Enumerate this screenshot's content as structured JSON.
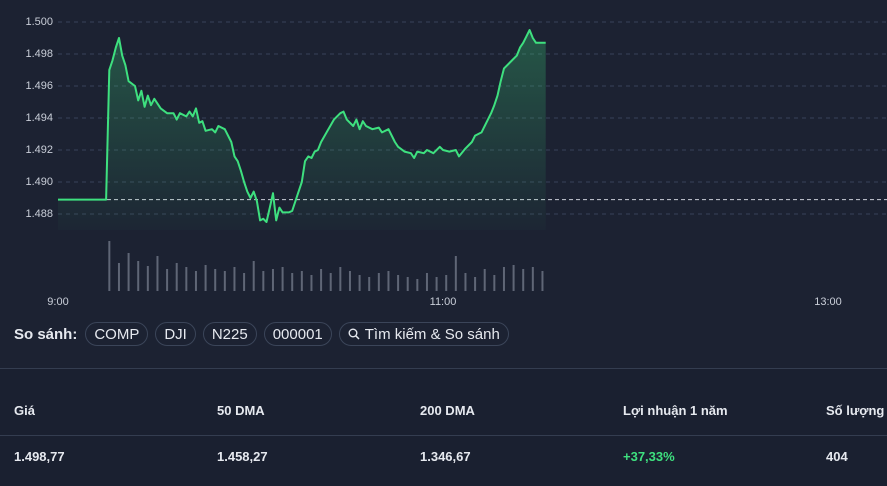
{
  "chart_data": {
    "type": "line",
    "x": [
      "9:00",
      "9:15",
      "9:16",
      "9:17",
      "9:18",
      "9:19",
      "9:20",
      "9:21",
      "9:22",
      "9:24",
      "9:25",
      "9:26",
      "9:27",
      "9:28",
      "9:29",
      "9:30",
      "9:32",
      "9:34",
      "9:36",
      "9:37",
      "9:38",
      "9:40",
      "9:41",
      "9:42",
      "9:43",
      "9:44",
      "9:45",
      "9:46",
      "9:48",
      "9:49",
      "9:50",
      "9:52",
      "9:54",
      "9:55",
      "9:56",
      "9:57",
      "9:58",
      "9:59",
      "10:00",
      "10:01",
      "10:02",
      "10:03",
      "10:04",
      "10:05",
      "10:06",
      "10:07",
      "10:08",
      "10:09",
      "10:10",
      "10:12",
      "10:13",
      "10:14",
      "10:15",
      "10:16",
      "10:17",
      "10:18",
      "10:19",
      "10:20",
      "10:21",
      "10:22",
      "10:24",
      "10:26",
      "10:28",
      "10:29",
      "10:30",
      "10:32",
      "10:33",
      "10:34",
      "10:35",
      "10:36",
      "10:38",
      "10:40",
      "10:41",
      "10:43",
      "10:45",
      "10:46",
      "10:48",
      "10:50",
      "10:51",
      "10:52",
      "10:54",
      "10:55",
      "10:57",
      "10:59",
      "11:00",
      "11:02",
      "11:04",
      "11:05",
      "11:07",
      "11:09",
      "11:10",
      "11:12",
      "11:13",
      "11:14",
      "11:15",
      "11:16",
      "11:17",
      "11:18",
      "11:19",
      "11:21",
      "11:23",
      "11:24",
      "11:25",
      "11:26",
      "11:27",
      "11:28",
      "11:29",
      "11:30",
      "11:32"
    ],
    "values": [
      1488.9,
      1488.9,
      1497.0,
      1497.6,
      1498.4,
      1499.0,
      1497.9,
      1497.3,
      1496.3,
      1496.0,
      1495.1,
      1495.7,
      1494.7,
      1495.4,
      1494.8,
      1495.2,
      1494.6,
      1494.3,
      1494.3,
      1493.9,
      1494.3,
      1494.1,
      1494.4,
      1494.1,
      1494.6,
      1493.7,
      1493.8,
      1493.2,
      1493.3,
      1493.1,
      1493.5,
      1493.3,
      1492.5,
      1491.6,
      1491.3,
      1490.7,
      1490.0,
      1489.4,
      1489.0,
      1489.4,
      1488.8,
      1487.6,
      1487.7,
      1487.5,
      1488.4,
      1489.3,
      1487.6,
      1488.4,
      1488.1,
      1488.1,
      1488.2,
      1488.8,
      1489.4,
      1490.0,
      1491.3,
      1491.6,
      1491.5,
      1491.9,
      1492.0,
      1492.5,
      1493.2,
      1493.9,
      1494.3,
      1494.4,
      1493.9,
      1493.5,
      1493.9,
      1493.3,
      1493.8,
      1493.5,
      1493.3,
      1493.4,
      1493.1,
      1493.3,
      1492.5,
      1492.2,
      1491.9,
      1491.8,
      1491.5,
      1491.9,
      1491.8,
      1492.0,
      1491.8,
      1492.2,
      1492.0,
      1491.9,
      1492.0,
      1491.6,
      1492.1,
      1492.5,
      1492.9,
      1493.1,
      1493.5,
      1493.9,
      1494.3,
      1494.8,
      1495.4,
      1496.3,
      1497.1,
      1497.5,
      1497.9,
      1498.4,
      1498.7,
      1499.1,
      1499.5,
      1499.0,
      1498.7,
      1498.7,
      1498.7
    ],
    "color": "#3ee07f",
    "reference_line": 1488.9,
    "ylim": [
      1487,
      1500.5
    ],
    "yticks": [
      {
        "value": 1488,
        "label": "1.488"
      },
      {
        "value": 1490,
        "label": "1.490"
      },
      {
        "value": 1492,
        "label": "1.492"
      },
      {
        "value": 1494,
        "label": "1.494"
      },
      {
        "value": 1496,
        "label": "1.496"
      },
      {
        "value": 1498,
        "label": "1.498"
      },
      {
        "value": 1500,
        "label": "1.500"
      }
    ],
    "xlim": [
      "9:00",
      "13:00"
    ],
    "xticks": [
      "9:00",
      "11:00",
      "13:00"
    ],
    "grid": true,
    "volume": {
      "x": [
        "9:16",
        "9:19",
        "9:22",
        "9:25",
        "9:28",
        "9:31",
        "9:34",
        "9:37",
        "9:40",
        "9:43",
        "9:46",
        "9:49",
        "9:52",
        "9:55",
        "9:58",
        "10:01",
        "10:04",
        "10:07",
        "10:10",
        "10:13",
        "10:16",
        "10:19",
        "10:22",
        "10:25",
        "10:28",
        "10:31",
        "10:34",
        "10:37",
        "10:40",
        "10:43",
        "10:46",
        "10:49",
        "10:52",
        "10:55",
        "10:58",
        "11:01",
        "11:04",
        "11:07",
        "11:10",
        "11:13",
        "11:16",
        "11:19",
        "11:22",
        "11:25",
        "11:28",
        "11:31"
      ],
      "values": [
        50,
        28,
        38,
        30,
        25,
        35,
        22,
        28,
        24,
        20,
        26,
        22,
        20,
        24,
        18,
        30,
        20,
        22,
        24,
        18,
        20,
        16,
        22,
        18,
        24,
        20,
        16,
        14,
        18,
        20,
        16,
        14,
        12,
        18,
        14,
        16,
        35,
        18,
        14,
        22,
        16,
        24,
        26,
        22,
        24,
        20
      ],
      "color": "#5f6676",
      "lim": [
        0,
        50
      ]
    }
  },
  "compare": {
    "label": "So sánh:",
    "items": [
      "COMP",
      "DJI",
      "N225",
      "000001"
    ],
    "search": "Tìm kiếm & So sánh"
  },
  "stats": {
    "headers": [
      "Giá",
      "50 DMA",
      "200 DMA",
      "Lợi nhuận 1 năm",
      "Số lượng"
    ],
    "values": [
      "1.498,77",
      "1.458,27",
      "1.346,67",
      "+37,33%",
      "404"
    ]
  }
}
